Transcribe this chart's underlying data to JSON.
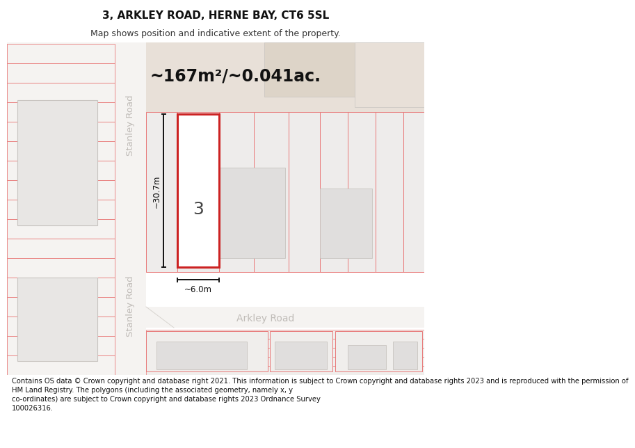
{
  "title": "3, ARKLEY ROAD, HERNE BAY, CT6 5SL",
  "subtitle": "Map shows position and indicative extent of the property.",
  "footer": "Contains OS data © Crown copyright and database right 2021. This information is subject to Crown copyright and database rights 2023 and is reproduced with the permission of\nHM Land Registry. The polygons (including the associated geometry, namely x, y\nco-ordinates) are subject to Crown copyright and database rights 2023 Ordnance Survey\n100026316.",
  "area_label": "~167m²/~0.041ac.",
  "width_label": "~6.0m",
  "height_label": "~30.7m",
  "plot_number": "3",
  "white": "#ffffff",
  "map_bg": "#f5f3f1",
  "tan_block": "#e8e0d8",
  "gray_block": "#e8e6e4",
  "gray_block2": "#e0dedd",
  "red_line": "#e87878",
  "dark_red": "#cc2222",
  "gray_line": "#c8c4c0",
  "road_bg": "#f5f3f1",
  "road_label": "#c0bcb8",
  "dim_color": "#111111",
  "text_dark": "#111111",
  "title_fs": 11,
  "subtitle_fs": 9,
  "footer_fs": 7.2,
  "area_fs": 17,
  "plotnum_fs": 18,
  "dim_fs": 8.5,
  "road_fs": 9.5
}
